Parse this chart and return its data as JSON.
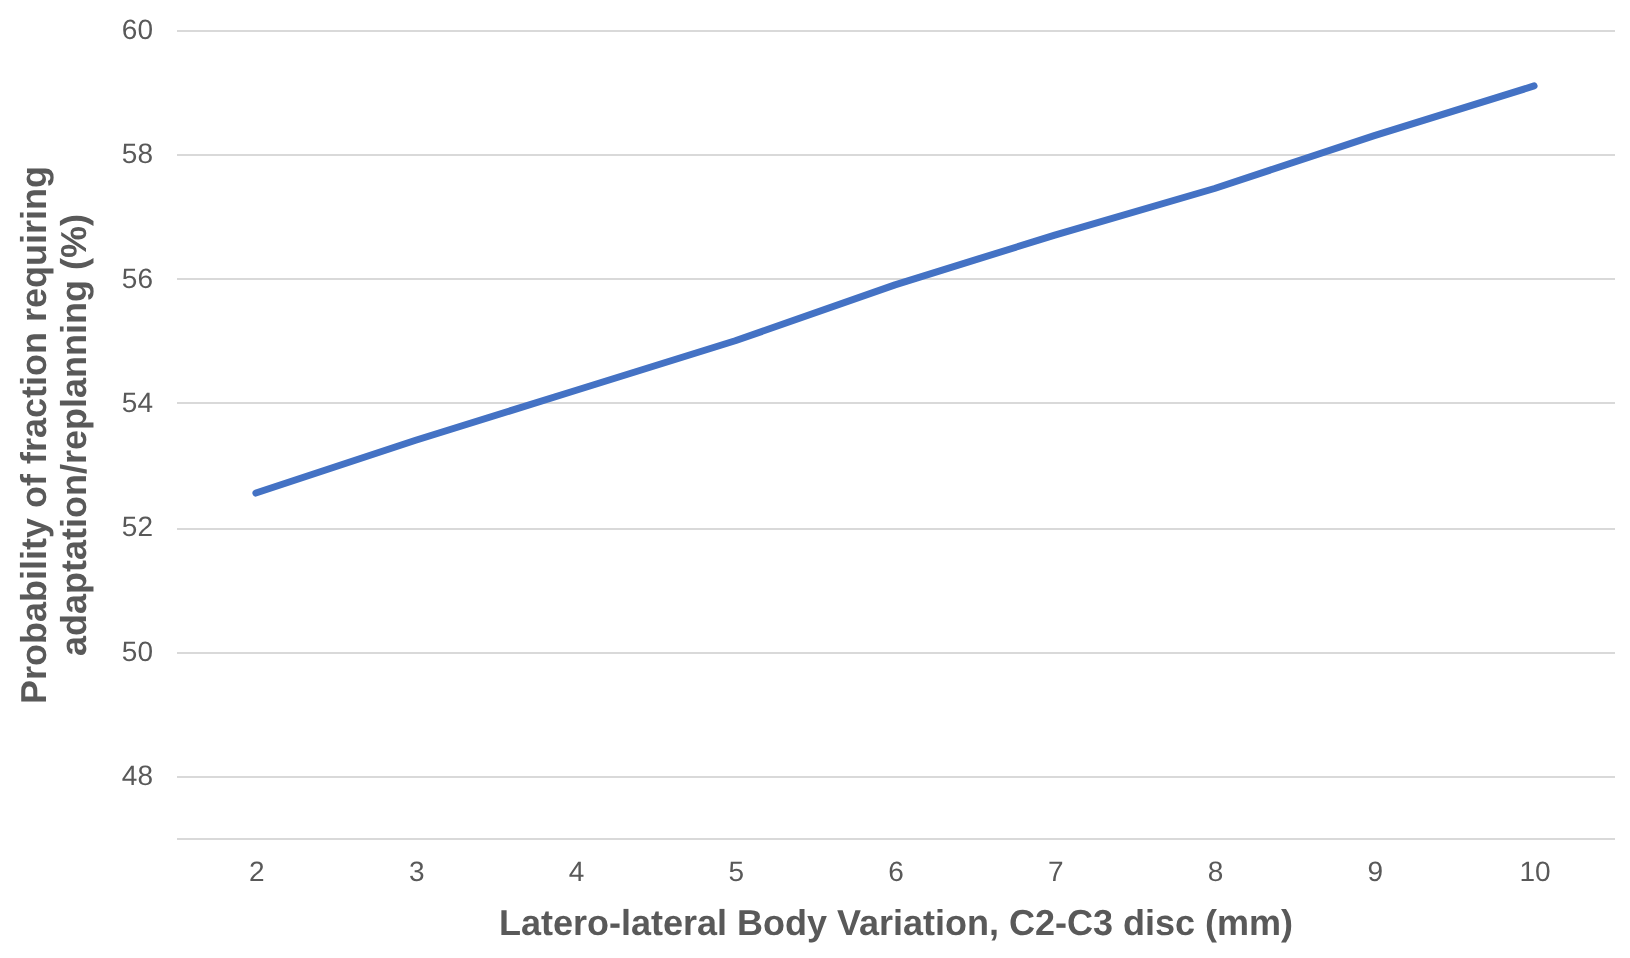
{
  "chart_data": {
    "type": "line",
    "xlabel": "Latero-lateral Body Variation, C2-C3 disc (mm)",
    "ylabel": "Probability of fraction requiring adaptation/replanning   (%)",
    "categories": [
      "2",
      "3",
      "4",
      "5",
      "6",
      "7",
      "8",
      "9",
      "10"
    ],
    "series": [
      {
        "color": "#4472c4",
        "values": [
          52.55,
          53.4,
          54.2,
          55.0,
          55.9,
          56.7,
          57.45,
          58.3,
          59.1
        ]
      }
    ],
    "ylim": [
      47,
      60
    ],
    "yticks": [
      48,
      50,
      52,
      54,
      56,
      58,
      60
    ],
    "grid": "y",
    "marker": "none",
    "line_style": "solid"
  }
}
